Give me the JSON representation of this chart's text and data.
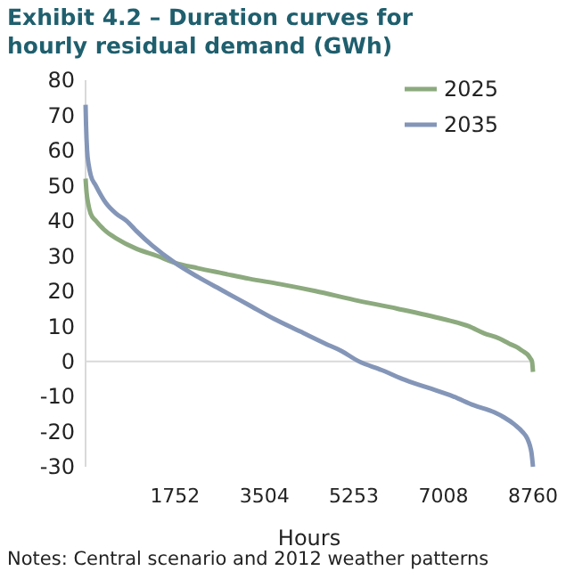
{
  "chart_data": {
    "type": "line",
    "title": "Exhibit 4.2 – Duration curves for hourly residual demand (GWh)",
    "xlabel": "Hours",
    "xlim": [
      0,
      8760
    ],
    "xticks": [
      1752,
      3504,
      5253,
      7008,
      8760
    ],
    "ylim": [
      -30,
      80
    ],
    "yticks": [
      -30,
      -20,
      -10,
      0,
      10,
      20,
      30,
      40,
      50,
      60,
      70,
      80
    ],
    "ref_lines": [
      {
        "axis": "y",
        "value": 0,
        "color": "#d9d9d9"
      }
    ],
    "legend": "top right",
    "grid": false,
    "marker": "none",
    "line_style": "solid",
    "annotations": [
      "Notes: Central scenario and 2012 weather patterns"
    ],
    "series": [
      {
        "name": "2025",
        "color": "#8caa7e",
        "x": [
          0,
          20,
          50,
          100,
          200,
          400,
          600,
          1000,
          1400,
          1752,
          2200,
          2700,
          3200,
          3800,
          4500,
          5253,
          6100,
          7008,
          7500,
          7800,
          8100,
          8300,
          8450,
          8550,
          8650,
          8700,
          8740,
          8760
        ],
        "values": [
          52,
          48,
          45,
          42,
          40,
          37,
          35,
          32,
          30,
          28,
          26.5,
          25,
          23.5,
          22,
          20,
          17.5,
          15,
          12,
          10,
          8,
          6.5,
          5,
          4,
          3,
          2,
          1,
          0,
          -3
        ]
      },
      {
        "name": "2035",
        "color": "#8496b8",
        "x": [
          0,
          10,
          30,
          60,
          100,
          200,
          400,
          600,
          800,
          1000,
          1300,
          1752,
          2200,
          2700,
          3200,
          3700,
          4200,
          4700,
          5000,
          5350,
          5800,
          6200,
          6700,
          7200,
          7600,
          8000,
          8200,
          8400,
          8550,
          8650,
          8700,
          8730,
          8760
        ],
        "values": [
          73,
          67,
          60,
          56,
          53,
          50,
          45,
          42,
          40,
          37,
          33,
          28,
          24,
          20,
          16,
          12,
          8.5,
          5,
          3,
          0,
          -2.5,
          -5,
          -7.5,
          -10,
          -12.5,
          -14.5,
          -16,
          -18,
          -20,
          -22,
          -24,
          -26,
          -30
        ]
      }
    ]
  }
}
